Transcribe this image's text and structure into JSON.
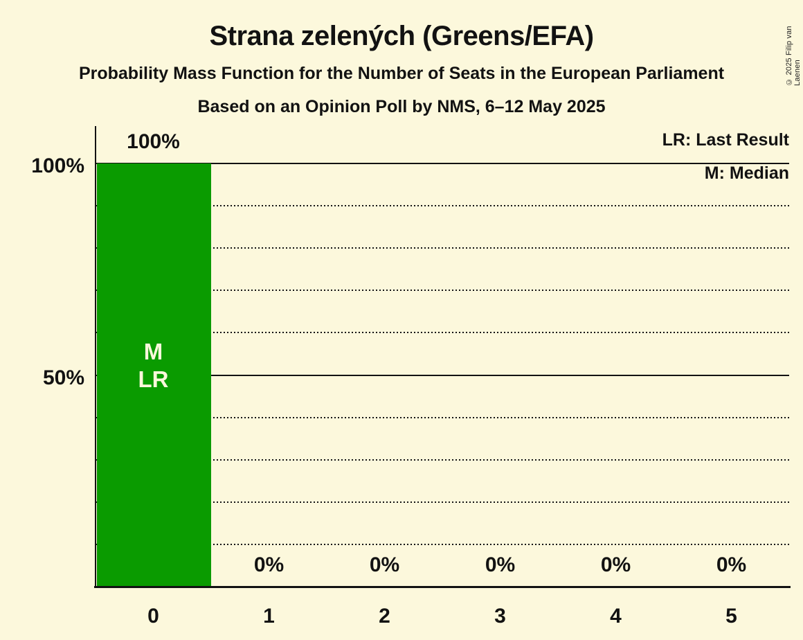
{
  "page": {
    "background_color": "#FCF8DC",
    "text_color": "#121212"
  },
  "header": {
    "title": "Strana zelených (Greens/EFA)",
    "subtitle": "Probability Mass Function for the Number of Seats in the European Parliament",
    "poll_line": "Based on an Opinion Poll by NMS, 6–12 May 2025"
  },
  "legend": {
    "lr": "LR: Last Result",
    "m": "M: Median"
  },
  "copyright": "© 2025 Filip van Laenen",
  "chart_data": {
    "type": "bar",
    "title": "Strana zelených (Greens/EFA)",
    "subtitle": "Probability Mass Function for the Number of Seats in the European Parliament",
    "source_line": "Based on an Opinion Poll by NMS, 6–12 May 2025",
    "categories": [
      "0",
      "1",
      "2",
      "3",
      "4",
      "5"
    ],
    "values": [
      100,
      0,
      0,
      0,
      0,
      0
    ],
    "value_labels": [
      "100%",
      "0%",
      "0%",
      "0%",
      "0%",
      "0%"
    ],
    "ylim": [
      0,
      100
    ],
    "ytick_labels": [
      {
        "value": 100,
        "label": "100%"
      },
      {
        "value": 50,
        "label": "50%"
      }
    ],
    "gridlines": {
      "solid": [
        100,
        50
      ],
      "dotted": [
        90,
        80,
        70,
        60,
        40,
        30,
        20,
        10
      ]
    },
    "grid": "horizontal, dotted every 10%, solid at 50% and 100%",
    "legend_position": "top-right",
    "legend_entries": [
      "LR: Last Result",
      "M: Median"
    ],
    "bar_color": "#0A9B00",
    "annotations": [
      {
        "bar": 0,
        "lines": [
          "M",
          "LR"
        ],
        "meaning": "Median and Last Result at 0 seats"
      }
    ]
  }
}
